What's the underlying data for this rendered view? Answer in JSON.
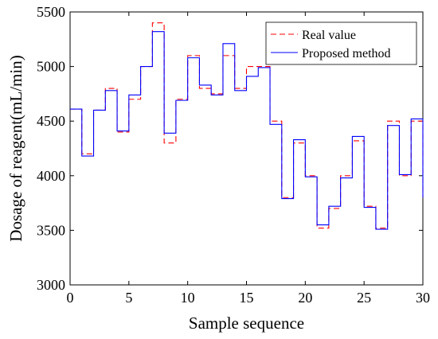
{
  "chart_data": {
    "type": "line",
    "xlabel": "Sample sequence",
    "ylabel": "Dosage of reagent(mL/min)",
    "xlim": [
      0,
      30
    ],
    "ylim": [
      3000,
      5500
    ],
    "xticks": [
      0,
      5,
      10,
      15,
      20,
      25,
      30
    ],
    "yticks": [
      3000,
      3500,
      4000,
      4500,
      5000,
      5500
    ],
    "grid": false,
    "legend_position": "top-right",
    "step": true,
    "series": [
      {
        "name": "Real value",
        "color": "#ff0000",
        "style": "dashed",
        "values": [
          4610,
          4200,
          4600,
          4800,
          4400,
          4700,
          5000,
          5400,
          4300,
          4700,
          5100,
          4800,
          4750,
          5100,
          4800,
          5000,
          5000,
          4500,
          3800,
          4300,
          4000,
          3520,
          3700,
          4000,
          4320,
          3720,
          3520,
          4500,
          4000,
          4500
        ]
      },
      {
        "name": "Proposed method",
        "color": "#0000ff",
        "style": "solid",
        "values": [
          4610,
          4180,
          4600,
          4780,
          4410,
          4740,
          5000,
          5320,
          4390,
          4690,
          5080,
          4830,
          4740,
          5210,
          4780,
          4910,
          4990,
          4470,
          3790,
          4330,
          3990,
          3550,
          3720,
          3980,
          4360,
          3710,
          3510,
          4460,
          4010,
          4520
        ]
      }
    ]
  }
}
